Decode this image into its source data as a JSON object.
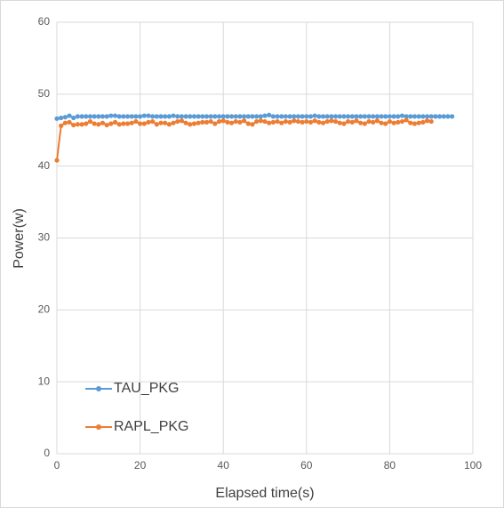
{
  "chart_data": {
    "type": "line",
    "x_label": "Elapsed time(s)",
    "y_label": "Power(w)",
    "xlim": [
      0,
      100
    ],
    "xticks": [
      0,
      20,
      40,
      60,
      80,
      100
    ],
    "ylim": [
      0,
      60
    ],
    "yticks": [
      0,
      10,
      20,
      30,
      40,
      50,
      60
    ],
    "grid": true,
    "legend": "lower-left",
    "series": [
      {
        "name": "TAU_PKG",
        "color": "#5b9bd5",
        "x": [
          0,
          1,
          2,
          3,
          4,
          5,
          6,
          7,
          8,
          9,
          10,
          11,
          12,
          13,
          14,
          15,
          16,
          17,
          18,
          19,
          20,
          21,
          22,
          23,
          24,
          25,
          26,
          27,
          28,
          29,
          30,
          31,
          32,
          33,
          34,
          35,
          36,
          37,
          38,
          39,
          40,
          41,
          42,
          43,
          44,
          45,
          46,
          47,
          48,
          49,
          50,
          51,
          52,
          53,
          54,
          55,
          56,
          57,
          58,
          59,
          60,
          61,
          62,
          63,
          64,
          65,
          66,
          67,
          68,
          69,
          70,
          71,
          72,
          73,
          74,
          75,
          76,
          77,
          78,
          79,
          80,
          81,
          82,
          83,
          84,
          85,
          86,
          87,
          88,
          89,
          90,
          91,
          92,
          93,
          94,
          95
        ],
        "values": [
          46.6,
          46.7,
          46.8,
          47.0,
          46.7,
          46.9,
          46.9,
          46.9,
          46.9,
          46.9,
          46.9,
          46.9,
          46.9,
          47.0,
          47.0,
          46.9,
          46.9,
          46.9,
          46.9,
          46.9,
          46.9,
          47.0,
          47.0,
          46.9,
          46.9,
          46.9,
          46.9,
          46.9,
          47.0,
          46.9,
          46.9,
          46.9,
          46.9,
          46.9,
          46.9,
          46.9,
          46.9,
          46.9,
          46.9,
          46.9,
          46.9,
          46.9,
          46.9,
          46.9,
          46.9,
          46.9,
          46.9,
          46.9,
          46.9,
          46.9,
          47.0,
          47.1,
          46.9,
          46.9,
          46.9,
          46.9,
          46.9,
          46.9,
          46.9,
          46.9,
          46.9,
          46.9,
          47.0,
          46.9,
          46.9,
          46.9,
          46.9,
          46.9,
          46.9,
          46.9,
          46.9,
          46.9,
          46.9,
          46.9,
          46.9,
          46.9,
          46.9,
          46.9,
          46.9,
          46.9,
          46.9,
          46.9,
          46.9,
          47.0,
          46.9,
          46.9,
          46.9,
          46.9,
          46.9,
          46.9,
          46.9,
          46.9,
          46.9,
          46.9,
          46.9,
          46.9
        ]
      },
      {
        "name": "RAPL_PKG",
        "color": "#ed7d31",
        "x": [
          0,
          1,
          2,
          3,
          4,
          5,
          6,
          7,
          8,
          9,
          10,
          11,
          12,
          13,
          14,
          15,
          16,
          17,
          18,
          19,
          20,
          21,
          22,
          23,
          24,
          25,
          26,
          27,
          28,
          29,
          30,
          31,
          32,
          33,
          34,
          35,
          36,
          37,
          38,
          39,
          40,
          41,
          42,
          43,
          44,
          45,
          46,
          47,
          48,
          49,
          50,
          51,
          52,
          53,
          54,
          55,
          56,
          57,
          58,
          59,
          60,
          61,
          62,
          63,
          64,
          65,
          66,
          67,
          68,
          69,
          70,
          71,
          72,
          73,
          74,
          75,
          76,
          77,
          78,
          79,
          80,
          81,
          82,
          83,
          84,
          85,
          86,
          87,
          88,
          89,
          90
        ],
        "values": [
          40.8,
          45.6,
          46.0,
          46.1,
          45.7,
          45.8,
          45.8,
          45.9,
          46.2,
          45.9,
          45.8,
          46.0,
          45.7,
          45.9,
          46.1,
          45.8,
          45.9,
          45.9,
          46.0,
          46.2,
          45.9,
          45.9,
          46.1,
          46.2,
          45.8,
          46.0,
          46.0,
          45.8,
          46.0,
          46.2,
          46.3,
          46.0,
          45.8,
          45.9,
          46.0,
          46.1,
          46.1,
          46.2,
          45.9,
          46.2,
          46.3,
          46.1,
          46.0,
          46.2,
          46.1,
          46.3,
          45.9,
          45.8,
          46.2,
          46.3,
          46.2,
          46.0,
          46.1,
          46.2,
          46.0,
          46.2,
          46.1,
          46.3,
          46.2,
          46.1,
          46.2,
          46.1,
          46.3,
          46.1,
          46.0,
          46.2,
          46.3,
          46.2,
          46.0,
          45.9,
          46.2,
          46.1,
          46.3,
          46.0,
          45.9,
          46.2,
          46.1,
          46.3,
          46.0,
          45.9,
          46.2,
          46.0,
          46.1,
          46.2,
          46.4,
          46.0,
          45.9,
          46.0,
          46.1,
          46.3,
          46.2
        ]
      }
    ]
  }
}
